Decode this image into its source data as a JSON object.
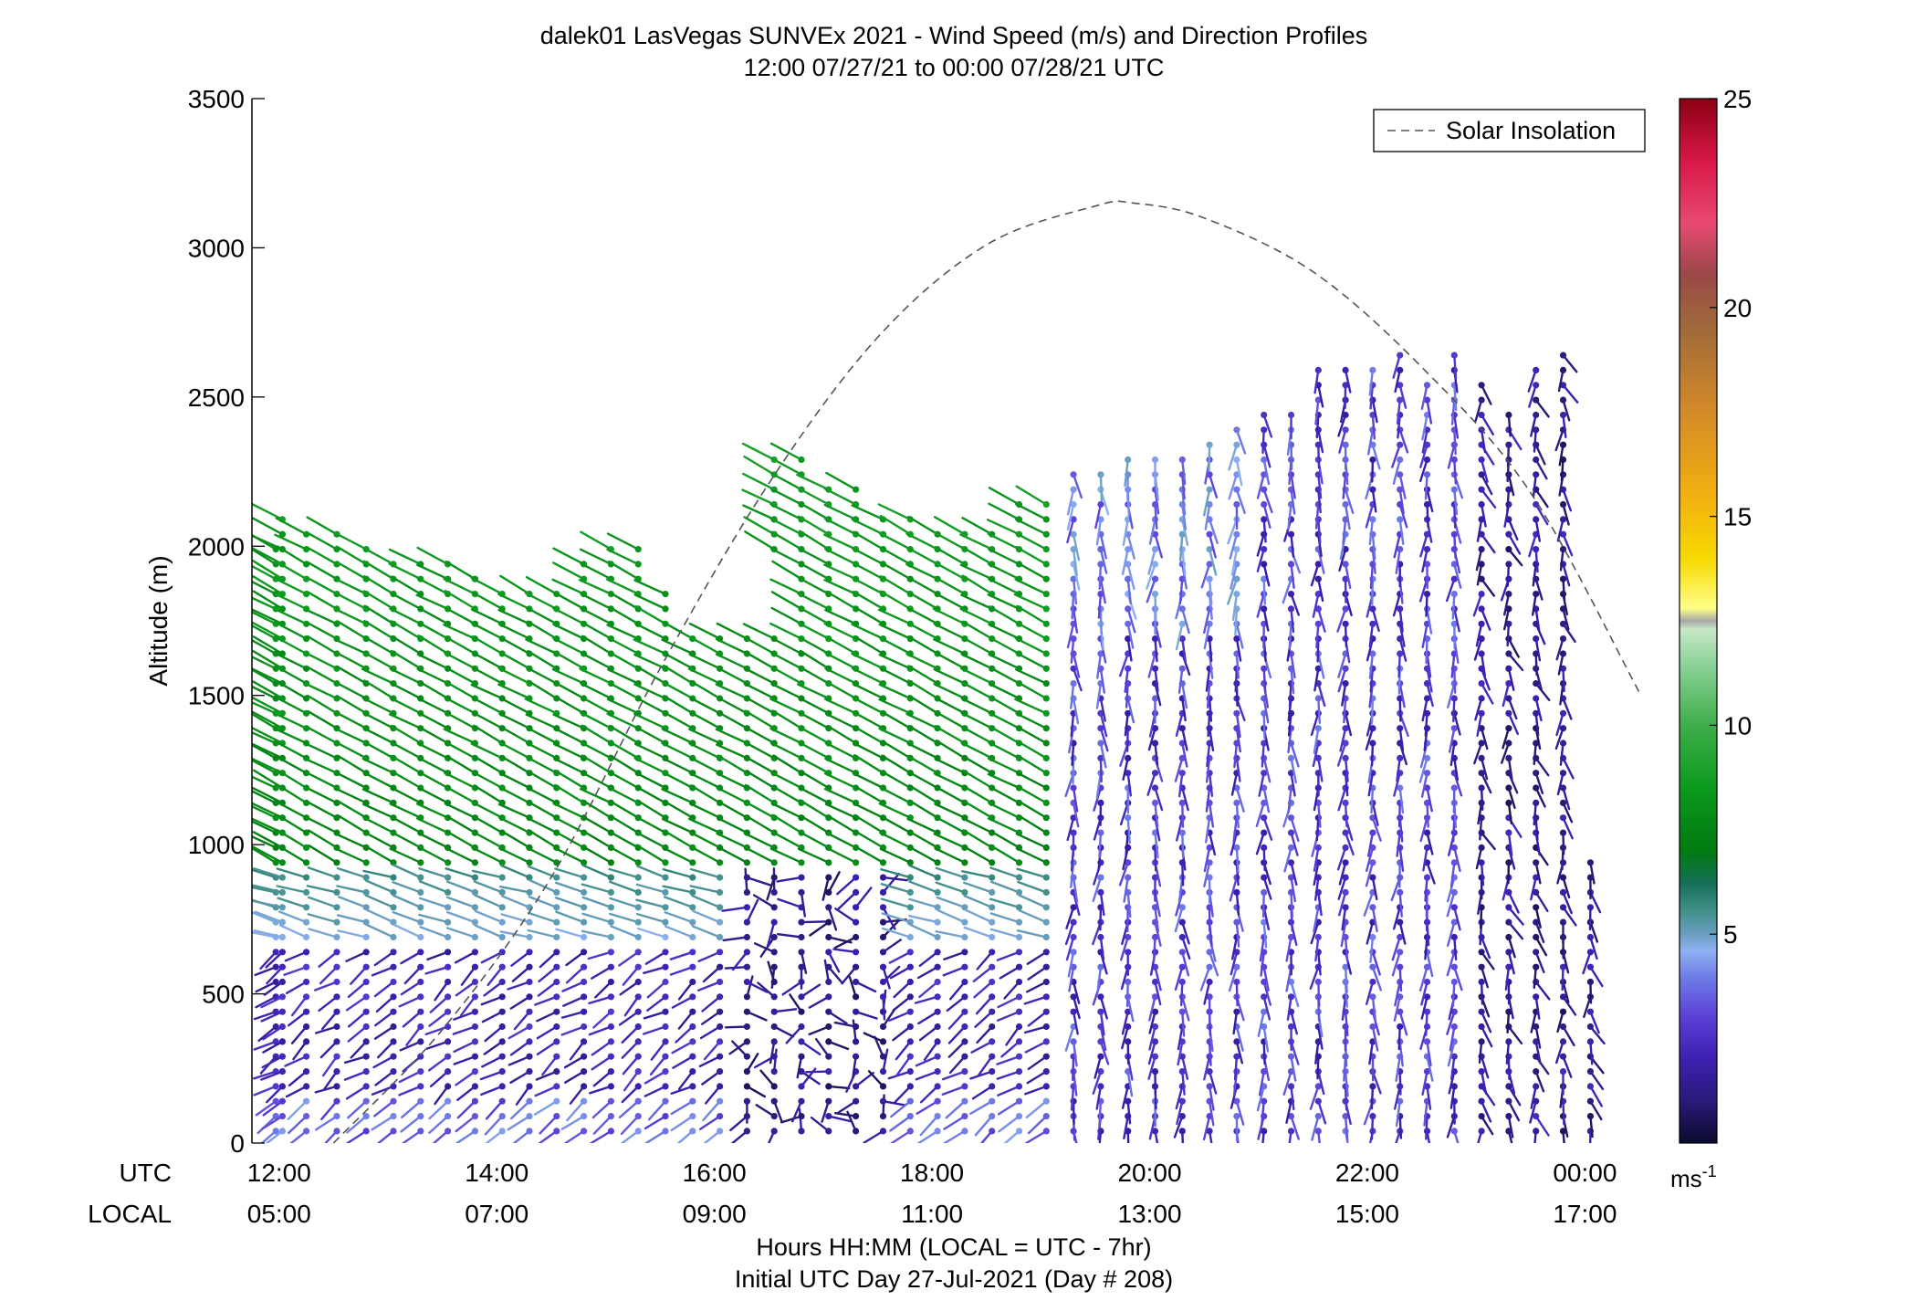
{
  "chart_data": {
    "type": "wind-barb-profile",
    "title": "dalek01 LasVegas SUNVEx 2021 - Wind Speed (m/s) and Direction Profiles",
    "subtitle": "12:00 07/27/21 to 00:00 07/28/21  UTC",
    "ylabel": "Altitude (m)",
    "xlabel": "Hours HH:MM  (LOCAL = UTC - 7hr)",
    "xlabel2": "Initial UTC Day 27-Jul-2021 (Day # 208)",
    "row_label_utc": "UTC",
    "row_label_local": "LOCAL",
    "ylim": [
      0,
      3500
    ],
    "y_ticks": [
      "0",
      "500",
      "1000",
      "1500",
      "2000",
      "2500",
      "3000",
      "3500"
    ],
    "xlim_hours": [
      11.75,
      24.5
    ],
    "utc_ticks": [
      "12:00",
      "14:00",
      "16:00",
      "18:00",
      "20:00",
      "22:00",
      "00:00"
    ],
    "local_ticks": [
      "05:00",
      "07:00",
      "09:00",
      "11:00",
      "13:00",
      "15:00",
      "17:00"
    ],
    "legend": {
      "label": "Solar Insolation",
      "position": "top-right",
      "line_color": "#555555",
      "dash": true
    },
    "colorbar": {
      "label": "ms",
      "label_sup": "-1",
      "range": [
        0,
        25
      ],
      "ticks": [
        "5",
        "10",
        "15",
        "20",
        "25"
      ],
      "stops": [
        {
          "v": 0.0,
          "c": "#0b0b2e"
        },
        {
          "v": 1.0,
          "c": "#2a1a78"
        },
        {
          "v": 2.0,
          "c": "#3d1fb0"
        },
        {
          "v": 3.0,
          "c": "#5b3fd6"
        },
        {
          "v": 4.0,
          "c": "#6f7fe6"
        },
        {
          "v": 4.6,
          "c": "#8fb0f2"
        },
        {
          "v": 5.0,
          "c": "#6a9ec0"
        },
        {
          "v": 5.6,
          "c": "#3f8f86"
        },
        {
          "v": 6.2,
          "c": "#17705a"
        },
        {
          "v": 7.0,
          "c": "#007a10"
        },
        {
          "v": 8.5,
          "c": "#0c9a1e"
        },
        {
          "v": 10.0,
          "c": "#3fae4a"
        },
        {
          "v": 11.5,
          "c": "#8fd39a"
        },
        {
          "v": 12.3,
          "c": "#c8e8c8"
        },
        {
          "v": 12.5,
          "c": "#a8a8a8"
        },
        {
          "v": 12.8,
          "c": "#ffff88"
        },
        {
          "v": 14.0,
          "c": "#f7d800"
        },
        {
          "v": 15.5,
          "c": "#f2b010"
        },
        {
          "v": 17.5,
          "c": "#d48a28"
        },
        {
          "v": 19.5,
          "c": "#a06a3a"
        },
        {
          "v": 20.8,
          "c": "#9a4848"
        },
        {
          "v": 22.0,
          "c": "#e84a72"
        },
        {
          "v": 23.5,
          "c": "#d81848"
        },
        {
          "v": 25.0,
          "c": "#8b0012"
        }
      ]
    },
    "solar_insolation": {
      "x": [
        12.5,
        13.5,
        14.5,
        15.5,
        16.5,
        17.5,
        18.5,
        19.5,
        19.85,
        20.5,
        21.5,
        22.5,
        23.5,
        24.5
      ],
      "y": [
        0,
        380,
        890,
        1590,
        2210,
        2700,
        3010,
        3140,
        3150,
        3100,
        2920,
        2600,
        2180,
        1510
      ]
    },
    "profiles": [
      {
        "t": 11.97,
        "top": 2030
      },
      {
        "t": 12.03,
        "top": 2090
      },
      {
        "t": 12.25,
        "top": 2040
      },
      {
        "t": 12.53,
        "top": 2040
      },
      {
        "t": 12.8,
        "top": 2000
      },
      {
        "t": 13.05,
        "top": 1960
      },
      {
        "t": 13.3,
        "top": 1960
      },
      {
        "t": 13.55,
        "top": 1960
      },
      {
        "t": 13.8,
        "top": 1900
      },
      {
        "t": 14.05,
        "top": 1860
      },
      {
        "t": 14.3,
        "top": 1860
      },
      {
        "t": 14.55,
        "top": 1880
      },
      {
        "t": 14.8,
        "top": 1960
      },
      {
        "t": 15.05,
        "top": 2000
      },
      {
        "t": 15.3,
        "top": 2000
      },
      {
        "t": 15.55,
        "top": 1850
      },
      {
        "t": 15.8,
        "top": 1700
      },
      {
        "t": 16.05,
        "top": 1700
      },
      {
        "t": 16.3,
        "top": 1870
      },
      {
        "t": 16.55,
        "top": 2300
      },
      {
        "t": 16.8,
        "top": 2300
      },
      {
        "t": 17.05,
        "top": 2200
      },
      {
        "t": 17.3,
        "top": 2200
      },
      {
        "t": 17.55,
        "top": 2130
      },
      {
        "t": 17.8,
        "top": 2130
      },
      {
        "t": 18.05,
        "top": 2050
      },
      {
        "t": 18.3,
        "top": 2050
      },
      {
        "t": 18.55,
        "top": 2060
      },
      {
        "t": 18.8,
        "top": 2140
      },
      {
        "t": 19.05,
        "top": 2140
      },
      {
        "t": 19.3,
        "top": 2250
      },
      {
        "t": 19.55,
        "top": 2280
      },
      {
        "t": 19.8,
        "top": 2320
      },
      {
        "t": 20.05,
        "top": 2320
      },
      {
        "t": 20.3,
        "top": 2330
      },
      {
        "t": 20.55,
        "top": 2380
      },
      {
        "t": 20.8,
        "top": 2420
      },
      {
        "t": 21.05,
        "top": 2460
      },
      {
        "t": 21.3,
        "top": 2460
      },
      {
        "t": 21.55,
        "top": 2600
      },
      {
        "t": 21.8,
        "top": 2600
      },
      {
        "t": 22.05,
        "top": 2600
      },
      {
        "t": 22.3,
        "top": 2680
      },
      {
        "t": 22.55,
        "top": 2580
      },
      {
        "t": 22.8,
        "top": 2680
      },
      {
        "t": 23.05,
        "top": 2580
      },
      {
        "t": 23.3,
        "top": 2480
      },
      {
        "t": 23.55,
        "top": 2620
      },
      {
        "t": 23.8,
        "top": 2680
      },
      {
        "t": 24.05,
        "top": 940
      }
    ]
  }
}
